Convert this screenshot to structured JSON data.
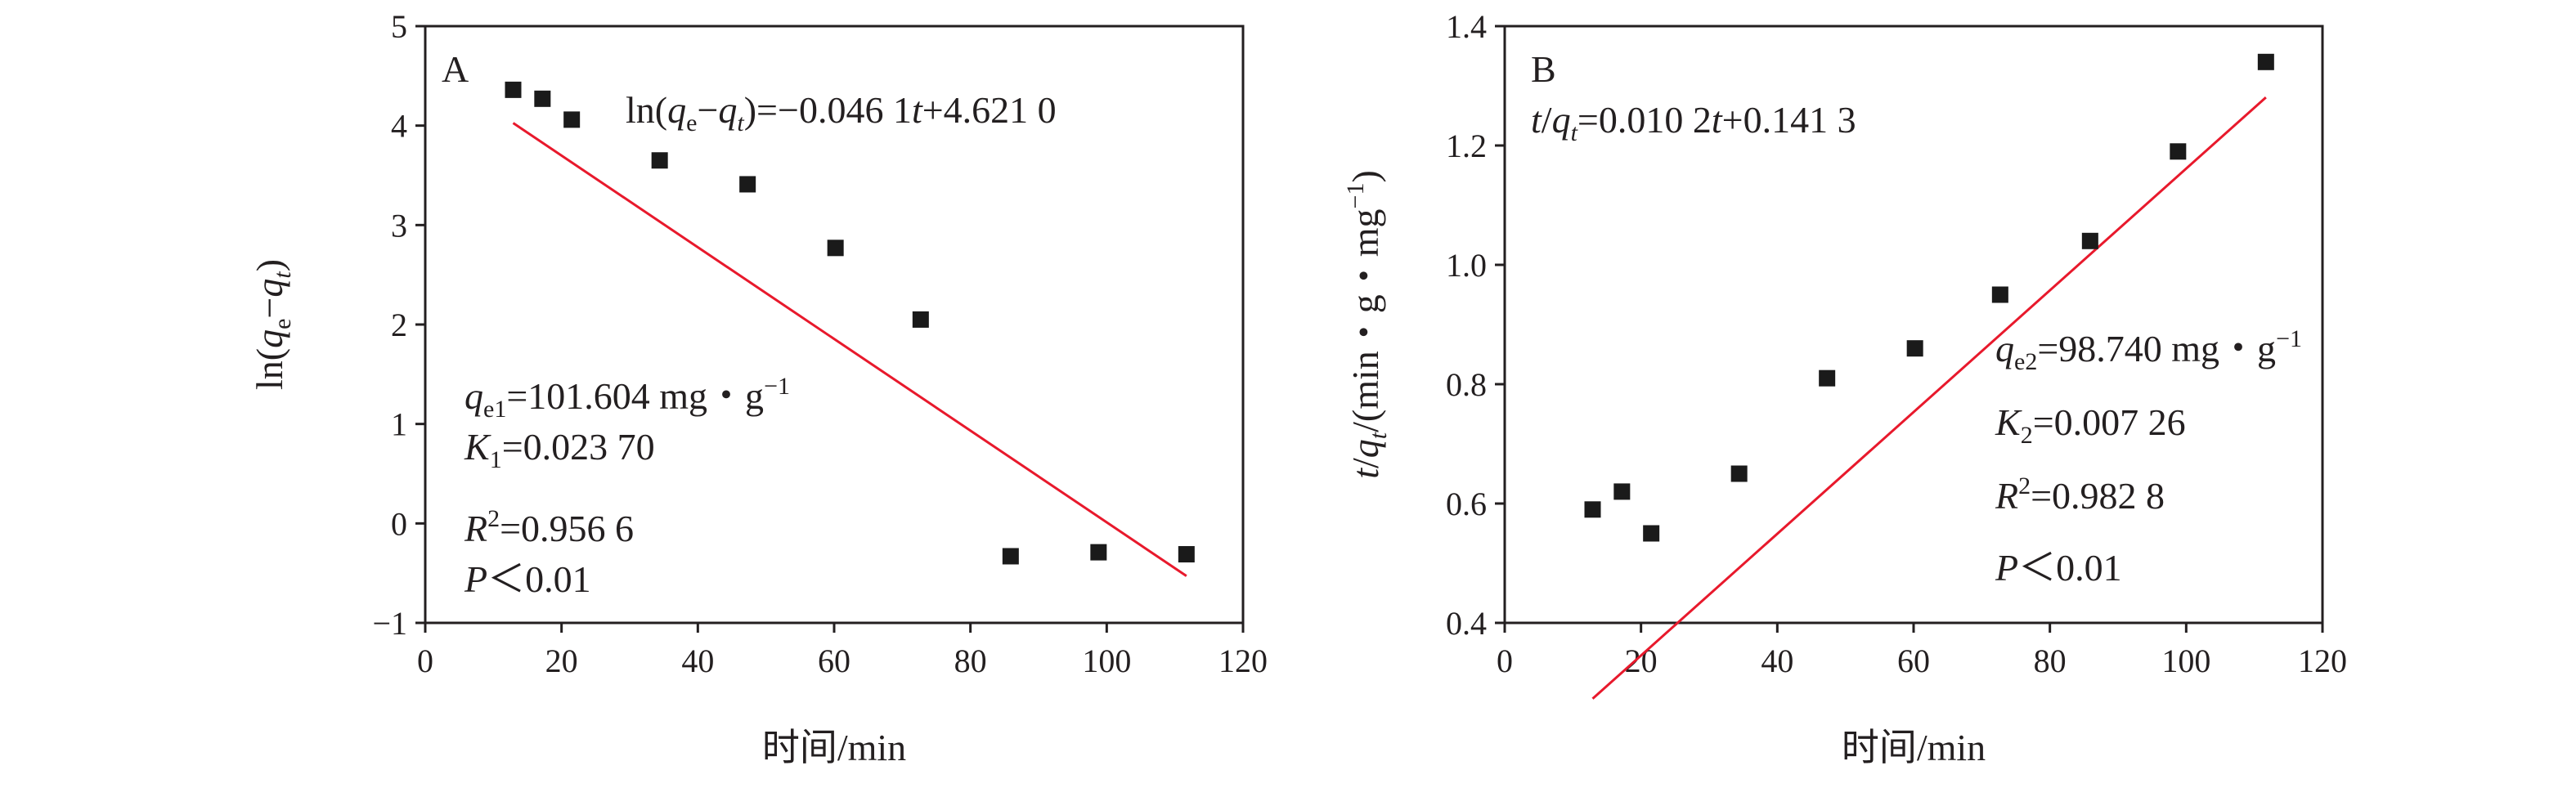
{
  "colors": {
    "axis": "#231f20",
    "point": "#1a1a1a",
    "fit_line": "#e8192c"
  },
  "chart_data": [
    {
      "type": "scatter",
      "panel_label": "A",
      "xlabel": "时间/min",
      "ylabel": "ln(qe−qt)",
      "xlim": [
        0,
        120
      ],
      "ylim": [
        -1,
        5
      ],
      "xticks": [
        0,
        20,
        40,
        60,
        80,
        100,
        120
      ],
      "yticks": [
        -1,
        0,
        1,
        2,
        3,
        4,
        5
      ],
      "xtick_labels": [
        "0",
        "20",
        "40",
        "60",
        "80",
        "100",
        "120"
      ],
      "ytick_labels": [
        "−1",
        "0",
        "1",
        "2",
        "3",
        "4",
        "5"
      ],
      "grid": false,
      "points": {
        "x": [
          12.9,
          17.2,
          21.5,
          34.4,
          47.3,
          60.2,
          72.7,
          85.9,
          98.8,
          111.7
        ],
        "y": [
          4.36,
          4.27,
          4.06,
          3.65,
          3.41,
          2.77,
          2.05,
          -0.33,
          -0.29,
          -0.31
        ]
      },
      "fit": {
        "slope": -0.0461,
        "intercept": 4.621,
        "x_range": [
          12.9,
          111.7
        ]
      },
      "annotations": {
        "equation": {
          "p1": "ln(",
          "q1": "q",
          "s1": "e",
          "p2": "−",
          "q2": "q",
          "s2": "t",
          "p3": ")=−0.046 1",
          "t": "t",
          "p4": "+4.621 0"
        },
        "qe": {
          "q": "q",
          "sub": "e1",
          "rest": "=101.604 mg・g",
          "sup": "−1"
        },
        "k": {
          "K": "K",
          "sub": "1",
          "rest": "=0.023 70"
        },
        "r2": {
          "R": "R",
          "sup": "2",
          "rest": "=0.956 6"
        },
        "p": {
          "P": "P",
          "rest": "＜0.01"
        }
      }
    },
    {
      "type": "scatter",
      "panel_label": "B",
      "xlabel": "时间/min",
      "ylabel": "t/qt/(min・g・mg−1)",
      "xlim": [
        0,
        120
      ],
      "ylim": [
        0.4,
        1.4
      ],
      "xticks": [
        0,
        20,
        40,
        60,
        80,
        100,
        120
      ],
      "yticks": [
        0.4,
        0.6,
        0.8,
        1.0,
        1.2,
        1.4
      ],
      "xtick_labels": [
        "0",
        "20",
        "40",
        "60",
        "80",
        "100",
        "120"
      ],
      "ytick_labels": [
        "0.4",
        "0.6",
        "0.8",
        "1.0",
        "1.2",
        "1.4"
      ],
      "grid": false,
      "points": {
        "x": [
          12.9,
          17.2,
          21.5,
          34.4,
          47.3,
          60.2,
          72.7,
          85.9,
          98.8,
          111.7
        ],
        "y": [
          0.59,
          0.62,
          0.55,
          0.65,
          0.81,
          0.86,
          0.95,
          1.04,
          1.19,
          1.34
        ]
      },
      "fit": {
        "slope": 0.0102,
        "intercept": 0.1413,
        "x_range": [
          12.9,
          111.7
        ]
      },
      "annotations": {
        "equation": {
          "t1": "t",
          "p1": "/",
          "q": "q",
          "s": "t",
          "p2": "=0.010 2",
          "t2": "t",
          "p3": "+0.141 3"
        },
        "qe": {
          "q": "q",
          "sub": "e2",
          "rest": "=98.740 mg・g",
          "sup": "−1"
        },
        "k": {
          "K": "K",
          "sub": "2",
          "rest": "=0.007 26"
        },
        "r2": {
          "R": "R",
          "sup": "2",
          "rest": "=0.982 8"
        },
        "p": {
          "P": "P",
          "rest": "＜0.01"
        }
      }
    }
  ],
  "axis_labels": {
    "A": {
      "x": "时间/min",
      "y_p1": "ln(",
      "y_q1": "q",
      "y_s1": "e",
      "y_p2": "−",
      "y_q2": "q",
      "y_s2": "t",
      "y_p3": ")"
    },
    "B": {
      "x": "时间/min",
      "y_t": "t",
      "y_p1": "/",
      "y_q": "q",
      "y_s": "t",
      "y_p2": "/(min・g・mg",
      "y_sup": "−1",
      "y_p3": ")"
    }
  }
}
